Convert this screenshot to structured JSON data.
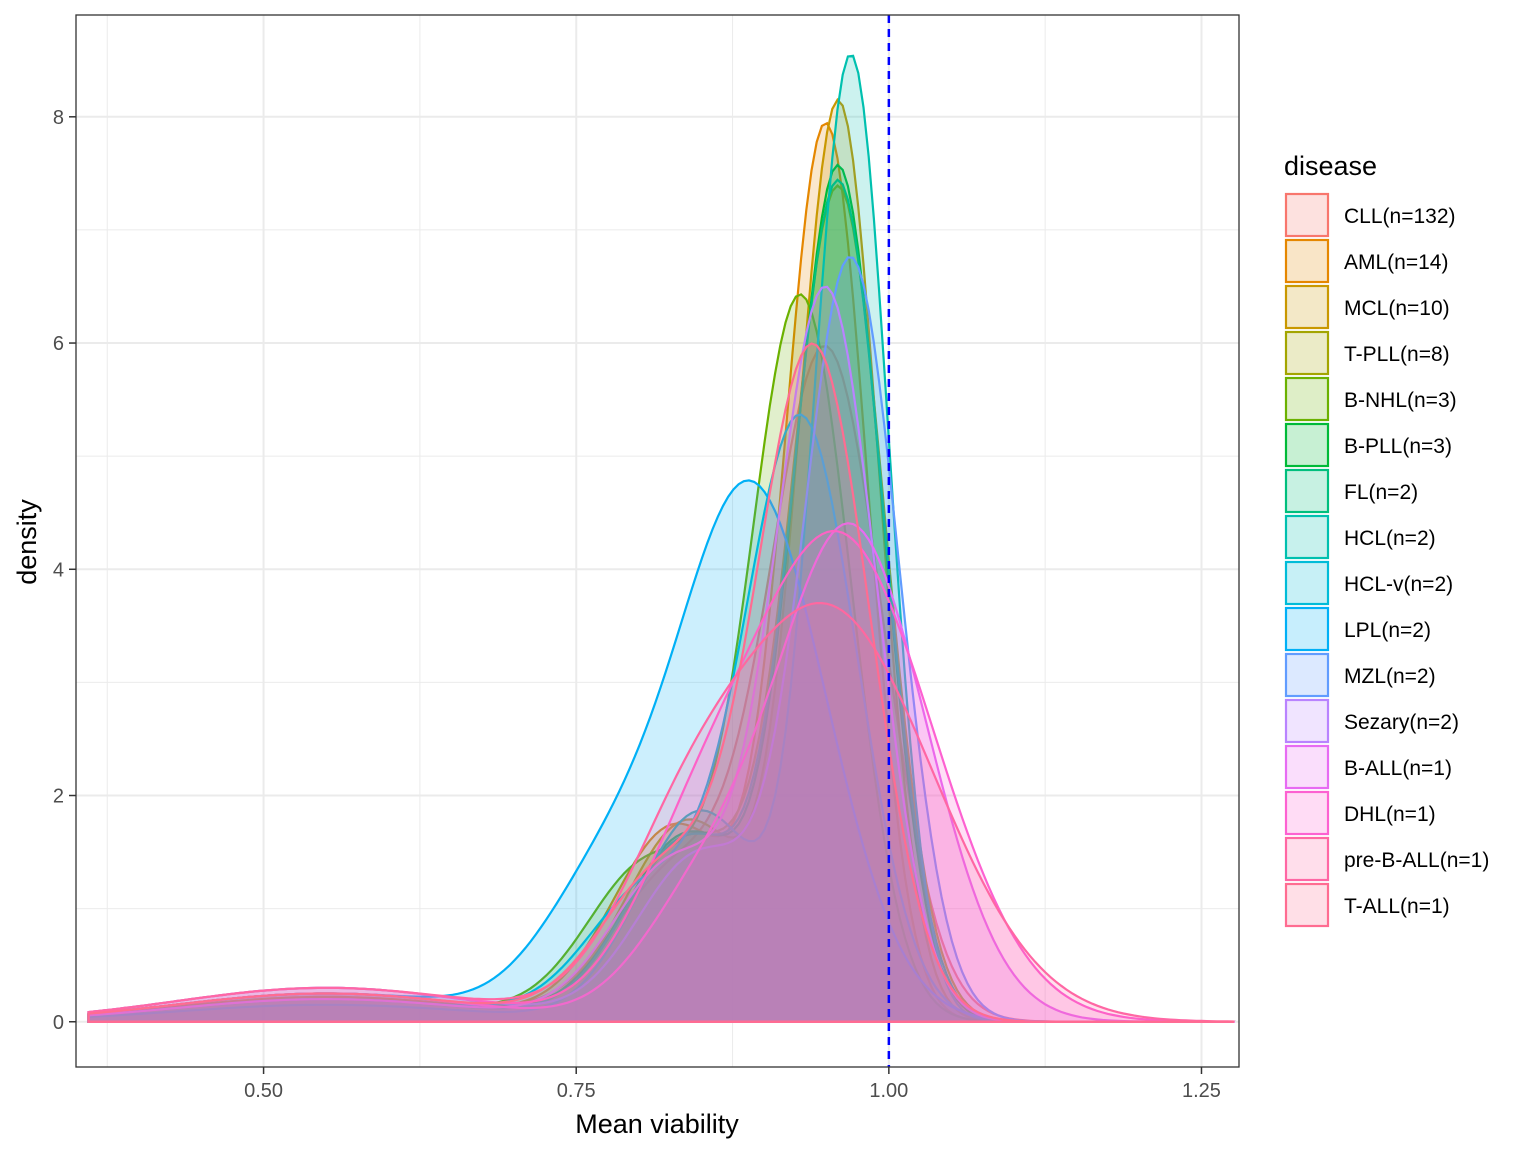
{
  "chart_data": {
    "type": "area",
    "subtype": "density",
    "xlabel": "Mean viability",
    "ylabel": "density",
    "xlim": [
      0.35,
      1.28
    ],
    "ylim": [
      -0.4,
      8.9
    ],
    "x_ticks": [
      0.5,
      0.75,
      1.0,
      1.25
    ],
    "x_tick_labels": [
      "0.50",
      "0.75",
      "1.00",
      "1.25"
    ],
    "y_ticks": [
      0,
      2,
      4,
      6,
      8
    ],
    "y_tick_labels": [
      "0",
      "2",
      "4",
      "6",
      "8"
    ],
    "grid": true,
    "reference_line": {
      "x": 1.0,
      "color": "#0000ff",
      "style": "dashed"
    },
    "legend": {
      "title": "disease",
      "position": "right"
    },
    "series": [
      {
        "name": "CLL(n=132)",
        "color": "#F8766D",
        "peak_x": 0.95,
        "peak_y": 5.9,
        "sd": 0.045,
        "tail": 0.25
      },
      {
        "name": "AML(n=14)",
        "color": "#E58700",
        "peak_x": 0.95,
        "peak_y": 7.85,
        "sd": 0.033,
        "tail": 0.22
      },
      {
        "name": "MCL(n=10)",
        "color": "#C99800",
        "peak_x": 0.96,
        "peak_y": 8.05,
        "sd": 0.032,
        "tail": 0.2
      },
      {
        "name": "T-PLL(n=8)",
        "color": "#A3A500",
        "peak_x": 0.96,
        "peak_y": 7.3,
        "sd": 0.037,
        "tail": 0.2
      },
      {
        "name": "B-NHL(n=3)",
        "color": "#6BB100",
        "peak_x": 0.93,
        "peak_y": 6.35,
        "sd": 0.04,
        "tail": 0.2
      },
      {
        "name": "B-PLL(n=3)",
        "color": "#00BA38",
        "peak_x": 0.96,
        "peak_y": 7.48,
        "sd": 0.035,
        "tail": 0.25
      },
      {
        "name": "FL(n=2)",
        "color": "#00BF7D",
        "peak_x": 0.96,
        "peak_y": 7.35,
        "sd": 0.036,
        "tail": 0.2
      },
      {
        "name": "HCL(n=2)",
        "color": "#00C0AF",
        "peak_x": 0.97,
        "peak_y": 8.45,
        "sd": 0.03,
        "tail": 0.15
      },
      {
        "name": "HCL-v(n=2)",
        "color": "#00BCD8",
        "peak_x": 0.93,
        "peak_y": 5.3,
        "sd": 0.045,
        "tail": 0.2
      },
      {
        "name": "LPL(n=2)",
        "color": "#00B0F6",
        "peak_x": 0.89,
        "peak_y": 4.72,
        "sd": 0.06,
        "tail": 0.25
      },
      {
        "name": "MZL(n=2)",
        "color": "#619CFF",
        "peak_x": 0.97,
        "peak_y": 6.68,
        "sd": 0.038,
        "tail": 0.3
      },
      {
        "name": "Sezary(n=2)",
        "color": "#B983FF",
        "peak_x": 0.95,
        "peak_y": 6.42,
        "sd": 0.04,
        "tail": 0.2
      },
      {
        "name": "B-ALL(n=1)",
        "color": "#E76BF3",
        "peak_x": 0.97,
        "peak_y": 4.35,
        "sd": 0.06,
        "tail": 0.25
      },
      {
        "name": "DHL(n=1)",
        "color": "#FD61D1",
        "peak_x": 0.96,
        "peak_y": 4.28,
        "sd": 0.075,
        "tail": 0.3
      },
      {
        "name": "pre-B-ALL(n=1)",
        "color": "#FF67A4",
        "peak_x": 0.95,
        "peak_y": 3.65,
        "sd": 0.085,
        "tail": 0.3
      },
      {
        "name": "T-ALL(n=1)",
        "color": "#FF6C91",
        "peak_x": 0.94,
        "peak_y": 5.92,
        "sd": 0.045,
        "tail": 0.25
      }
    ]
  }
}
